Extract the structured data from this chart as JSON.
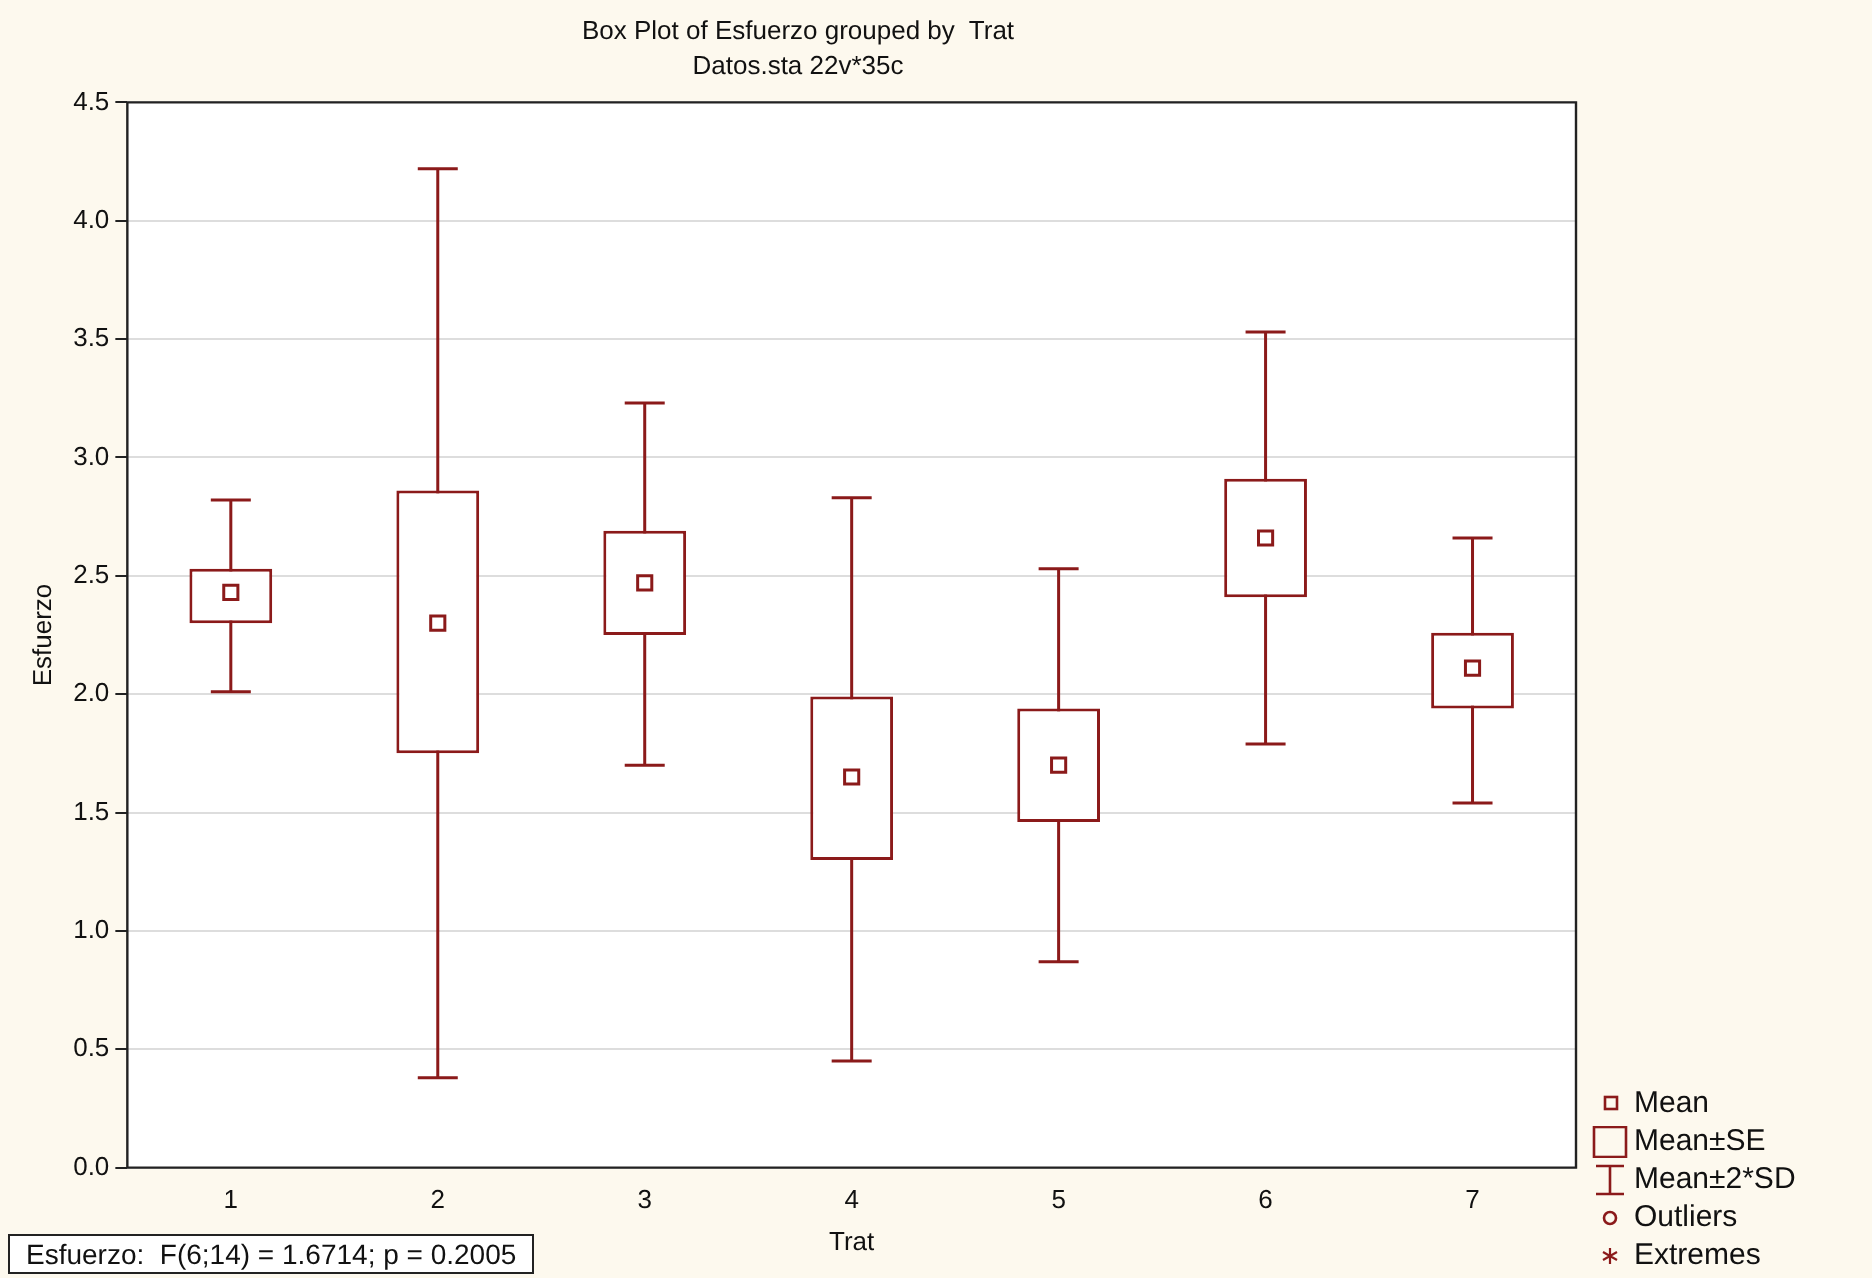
{
  "chart_data": {
    "type": "box",
    "title": "Box Plot of Esfuerzo grouped by  Trat",
    "subtitle": "Datos.sta 22v*35c",
    "xlabel": "Trat",
    "ylabel": "Esfuerzo",
    "categories": [
      "1",
      "2",
      "3",
      "4",
      "5",
      "6",
      "7"
    ],
    "series": [
      {
        "color": "#8b1a1a",
        "boxes": [
          {
            "low": 2.01,
            "q1": 2.3,
            "median": 2.43,
            "q3": 2.53,
            "high": 2.82
          },
          {
            "low": 0.38,
            "q1": 1.75,
            "median": 2.3,
            "q3": 2.86,
            "high": 4.22
          },
          {
            "low": 1.7,
            "q1": 2.25,
            "median": 2.47,
            "q3": 2.69,
            "high": 3.23
          },
          {
            "low": 0.45,
            "q1": 1.3,
            "median": 1.65,
            "q3": 1.99,
            "high": 2.83
          },
          {
            "low": 0.87,
            "q1": 1.46,
            "median": 1.7,
            "q3": 1.94,
            "high": 2.53
          },
          {
            "low": 1.79,
            "q1": 2.41,
            "median": 2.66,
            "q3": 2.91,
            "high": 3.53
          },
          {
            "low": 1.54,
            "q1": 1.94,
            "median": 2.11,
            "q3": 2.26,
            "high": 2.66
          }
        ]
      }
    ],
    "ylim": [
      0,
      4.5
    ],
    "yticks": [
      {
        "value": 0,
        "label": "0.0"
      },
      {
        "value": 0.5,
        "label": "0.5"
      },
      {
        "value": 1,
        "label": "1.0"
      },
      {
        "value": 1.5,
        "label": "1.5"
      },
      {
        "value": 2,
        "label": "2.0"
      },
      {
        "value": 2.5,
        "label": "2.5"
      },
      {
        "value": 3,
        "label": "3.0"
      },
      {
        "value": 3.5,
        "label": "3.5"
      },
      {
        "value": 4,
        "label": "4.0"
      },
      {
        "value": 4.5,
        "label": "4.5"
      }
    ],
    "grid": "y",
    "marker": "square",
    "annotations": [
      "Mean",
      "Mean±SE",
      "Mean±2*SD",
      "Outliers",
      "Extremes",
      "Esfuerzo:  F(6;14) = 1.6714; p = 0.2005"
    ]
  }
}
